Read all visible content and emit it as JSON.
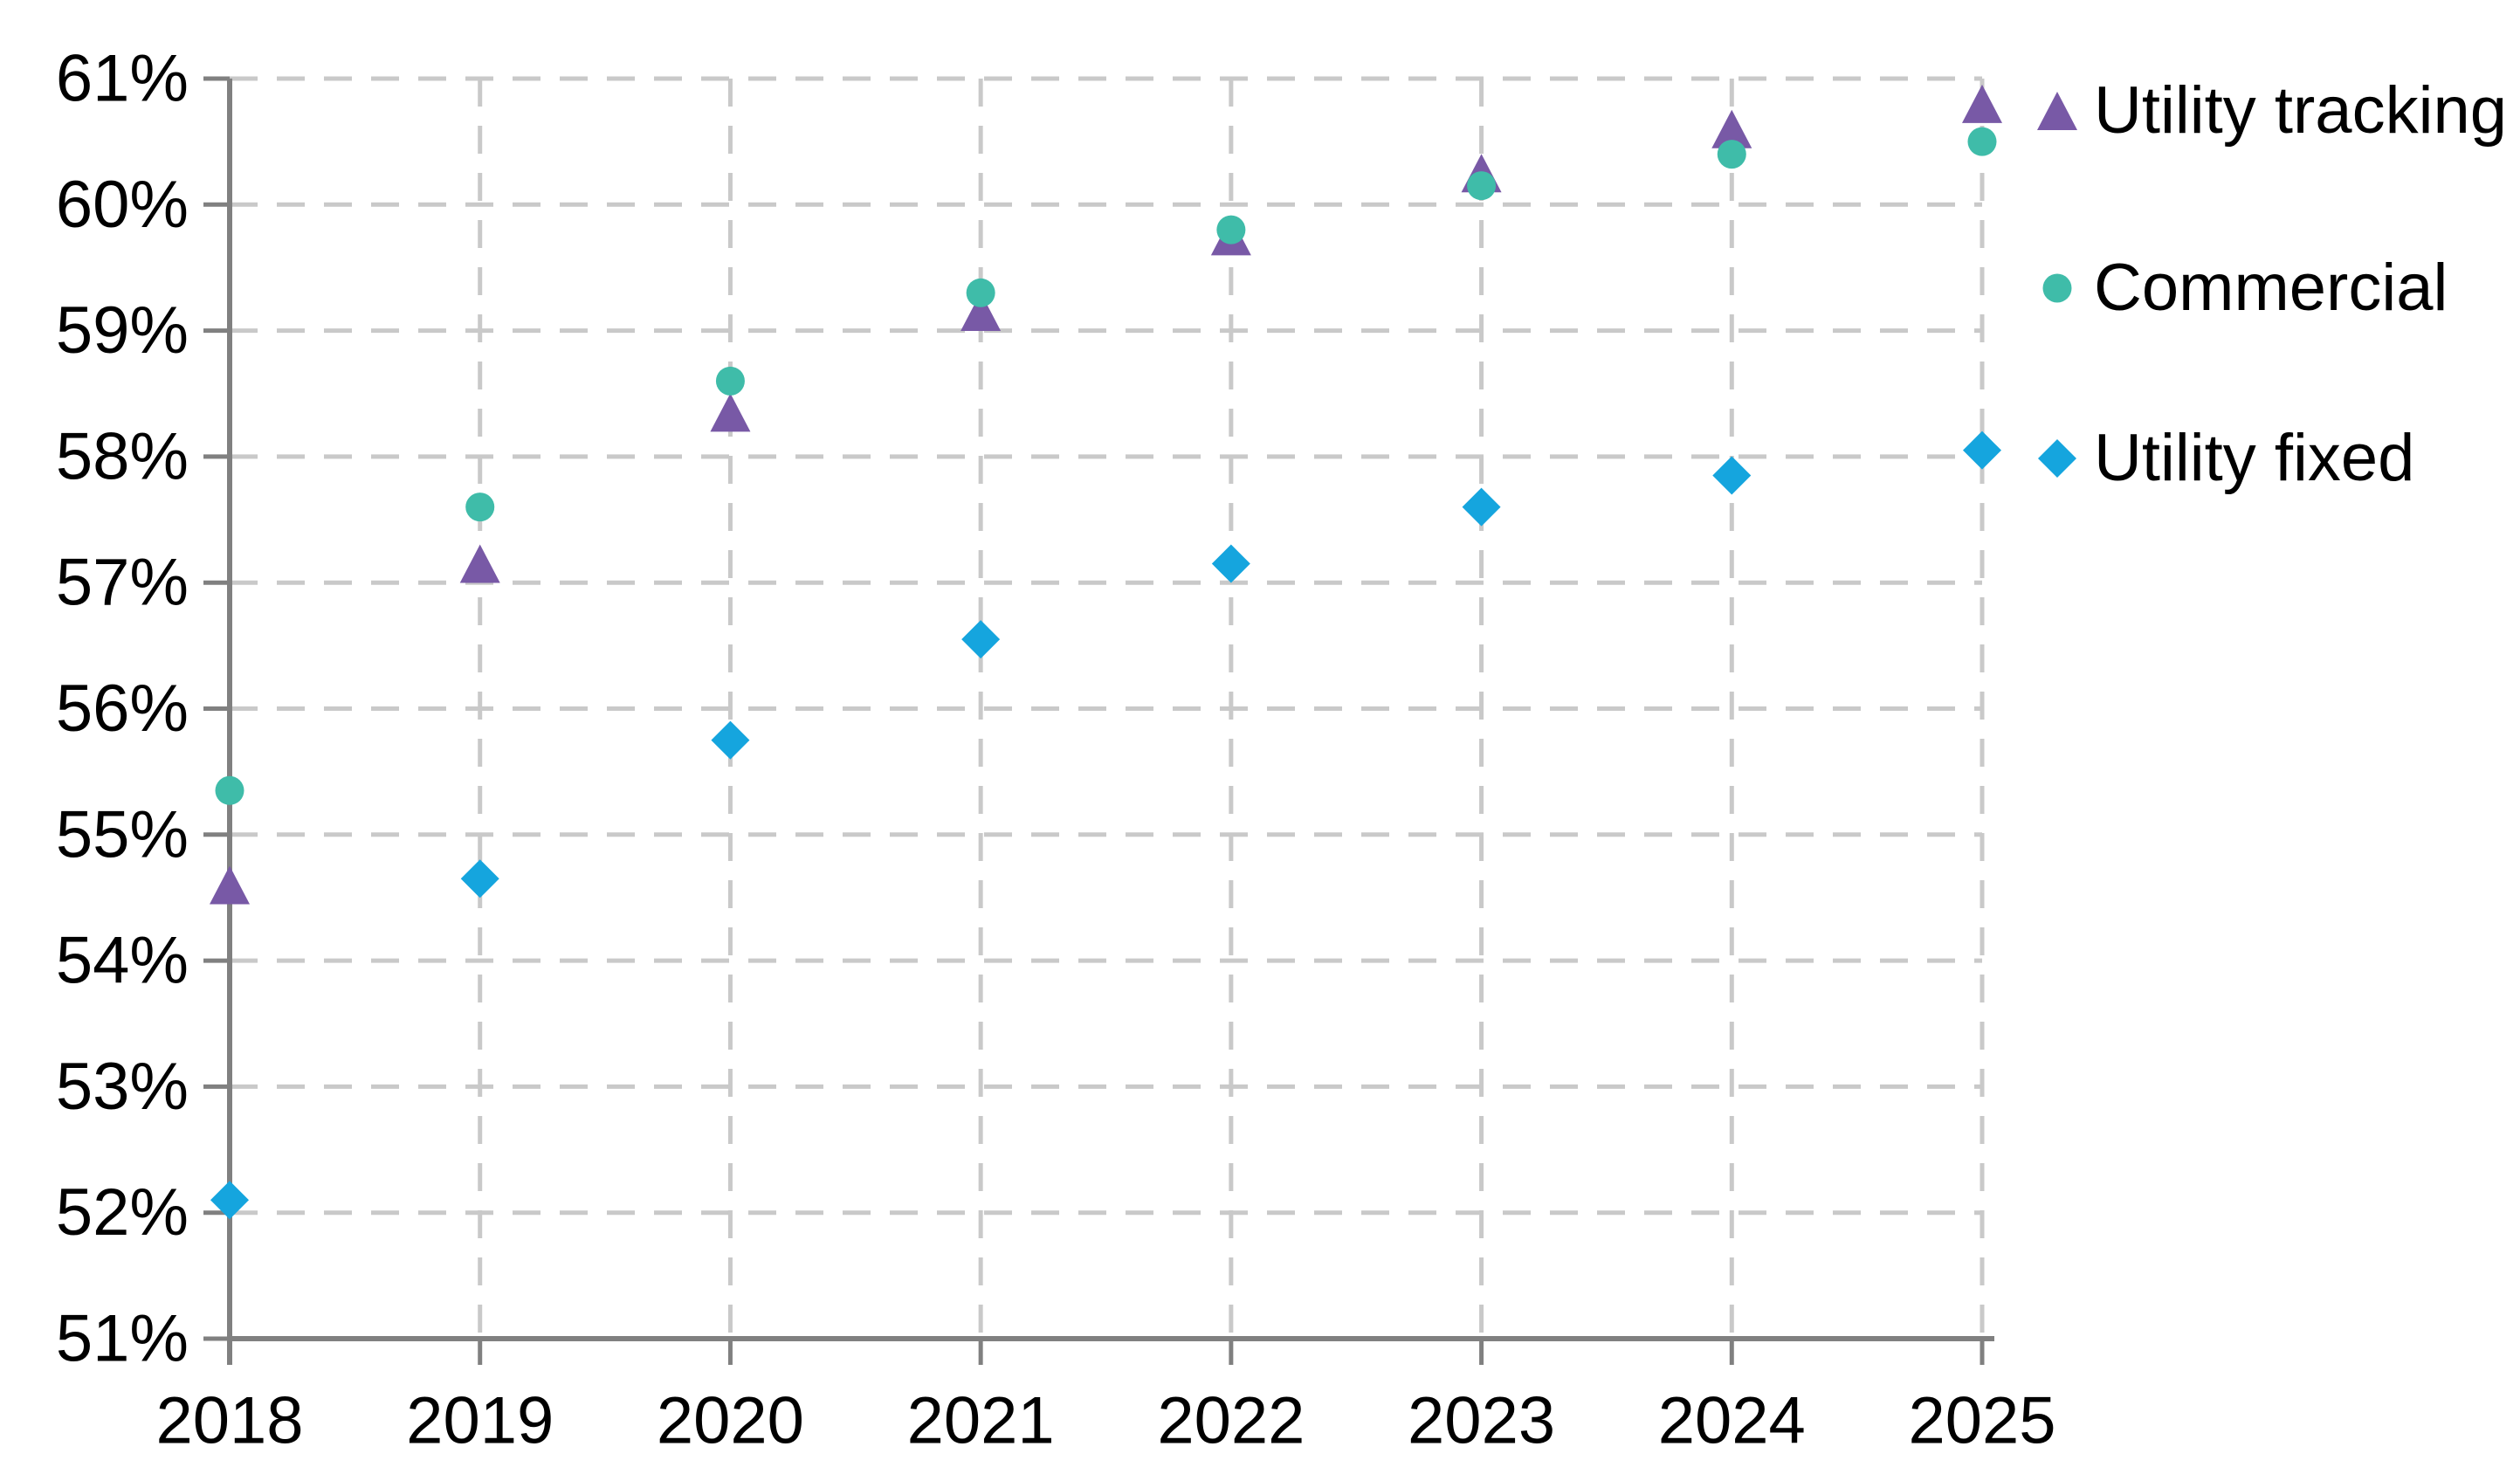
{
  "chart_data": {
    "type": "scatter",
    "title": "",
    "categories": [
      "2018",
      "2019",
      "2020",
      "2021",
      "2022",
      "2023",
      "2024",
      "2025"
    ],
    "series": [
      {
        "name": "Utility tracking",
        "marker": "triangle",
        "color": "#7859A6",
        "values": [
          54.6,
          57.15,
          58.35,
          59.15,
          59.75,
          60.25,
          60.6,
          60.8
        ]
      },
      {
        "name": "Commercial",
        "marker": "circle",
        "color": "#3FBCA9",
        "values": [
          55.35,
          57.6,
          58.6,
          59.3,
          59.8,
          60.15,
          60.4,
          60.5
        ]
      },
      {
        "name": "Utility fixed",
        "marker": "diamond",
        "color": "#15A5DE",
        "values": [
          52.1,
          54.65,
          55.75,
          56.55,
          57.15,
          57.6,
          57.85,
          58.05
        ]
      }
    ],
    "ylim": [
      51,
      61
    ],
    "y_tick_step": 1,
    "y_tick_labels": [
      "61%",
      "60%",
      "59%",
      "58%",
      "57%",
      "56%",
      "55%",
      "54%",
      "53%",
      "52%",
      "51%"
    ],
    "x_tick_labels": [
      "2018",
      "2019",
      "2020",
      "2021",
      "2022",
      "2023",
      "2024",
      "2025"
    ],
    "grid": "dashed-both",
    "legend_position": "right",
    "axis_color": "#808080",
    "grid_color": "#C9C9C9",
    "text_color": "#000000"
  }
}
